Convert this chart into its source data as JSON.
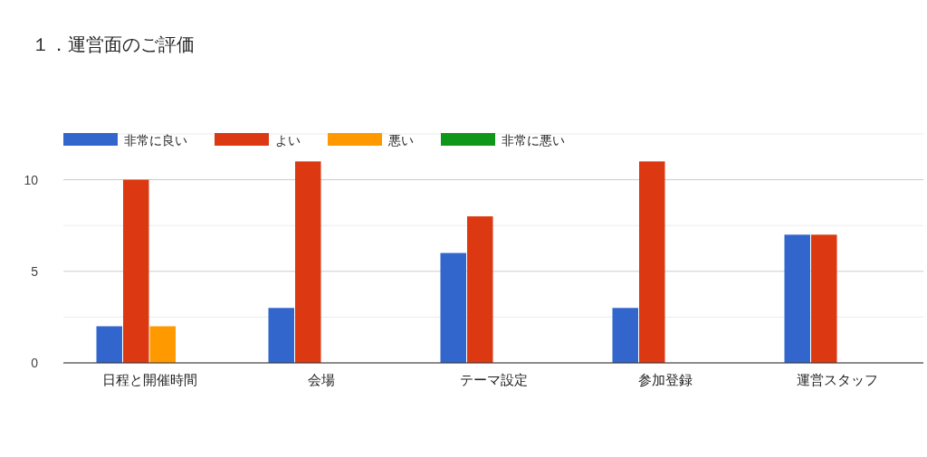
{
  "chart_data": {
    "type": "bar",
    "title": "１．運営面のご評価",
    "categories": [
      "日程と開催時間",
      "会場",
      "テーマ設定",
      "参加登録",
      "運営スタッフ"
    ],
    "series": [
      {
        "name": "非常に良い",
        "color": "#3366cc",
        "values": [
          2,
          3,
          6,
          3,
          7
        ]
      },
      {
        "name": "よい",
        "color": "#dc3912",
        "values": [
          10,
          11,
          8,
          11,
          7
        ]
      },
      {
        "name": "悪い",
        "color": "#ff9900",
        "values": [
          2,
          0,
          0,
          0,
          0
        ]
      },
      {
        "name": "非常に悪い",
        "color": "#109618",
        "values": [
          0,
          0,
          0,
          0,
          0
        ]
      }
    ],
    "ylim": [
      0,
      12.5
    ],
    "yticks": [
      0,
      {
        "value": 2.5,
        "label": null
      },
      5,
      {
        "value": 7.5,
        "label": null
      },
      10,
      {
        "value": 12.5,
        "label": null
      }
    ],
    "grid": true,
    "legend": "top left"
  }
}
